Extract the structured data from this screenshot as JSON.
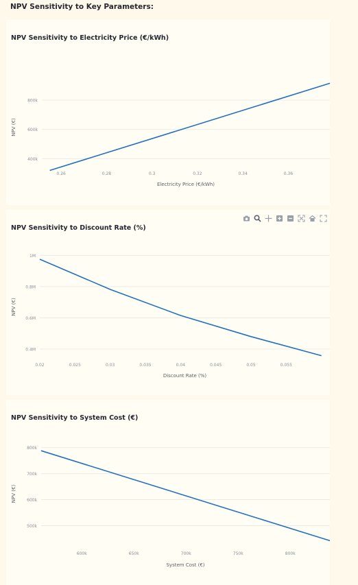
{
  "page": {
    "heading": "NPV Sensitivity to Key Parameters:"
  },
  "toolbar": {
    "icons": [
      "camera-icon",
      "zoom-icon",
      "pan-icon",
      "zoom-in-icon",
      "zoom-out-icon",
      "autoscale-icon",
      "home-icon",
      "fullscreen-icon"
    ]
  },
  "colors": {
    "line": "#1f6fc5",
    "grid": "#ebebe6",
    "tick_text": "#8a8e96",
    "axis_title": "#5b5f66",
    "background": "#fff9ec",
    "card": "#fffdf4"
  },
  "chart_data": [
    {
      "type": "line",
      "title": "NPV Sensitivity to Electricity Price (€/kWh)",
      "xlabel": "Electricity Price (€/kWh)",
      "ylabel": "NPV (€)",
      "xlim": [
        0.2515,
        0.3783
      ],
      "ylim": [
        285000,
        945000
      ],
      "xticks": [
        0.26,
        0.28,
        0.3,
        0.32,
        0.34,
        0.36
      ],
      "xtick_labels": [
        "0.26",
        "0.28",
        "0.3",
        "0.32",
        "0.34",
        "0.36"
      ],
      "yticks": [
        400000,
        600000,
        800000
      ],
      "ytick_labels": [
        "400k",
        "600k",
        "800k"
      ],
      "grid": true,
      "series": [
        {
          "x": [
            0.255,
            0.3783
          ],
          "y": [
            320000,
            915000
          ]
        }
      ]
    },
    {
      "type": "line",
      "title": "NPV Sensitivity to Discount Rate (%)",
      "xlabel": "Discount Rate (%)",
      "ylabel": "NPV (€)",
      "xlim": [
        0.02,
        0.0612
      ],
      "ylim": [
        330000,
        1010000
      ],
      "xticks": [
        0.02,
        0.025,
        0.03,
        0.035,
        0.04,
        0.045,
        0.05,
        0.055
      ],
      "xtick_labels": [
        "0.02",
        "0.025",
        "0.03",
        "0.035",
        "0.04",
        "0.045",
        "0.05",
        "0.055"
      ],
      "yticks": [
        400000,
        600000,
        800000,
        1000000
      ],
      "ytick_labels": [
        "0.4M",
        "0.6M",
        "0.8M",
        "1M"
      ],
      "grid": true,
      "series": [
        {
          "x": [
            0.02,
            0.03,
            0.04,
            0.05,
            0.06
          ],
          "y": [
            975000,
            782000,
            615000,
            480000,
            358000
          ]
        }
      ]
    },
    {
      "type": "line",
      "title": "NPV Sensitivity to System Cost (€)",
      "xlabel": "System Cost (€)",
      "ylabel": "NPV (€)",
      "xlim": [
        561000,
        838000
      ],
      "ylim": [
        430000,
        815000
      ],
      "xticks": [
        600000,
        650000,
        700000,
        750000,
        800000
      ],
      "xtick_labels": [
        "600k",
        "650k",
        "700k",
        "750k",
        "800k"
      ],
      "yticks": [
        500000,
        600000,
        700000,
        800000
      ],
      "ytick_labels": [
        "500k",
        "600k",
        "700k",
        "800k"
      ],
      "grid": true,
      "series": [
        {
          "x": [
            561000,
            838000
          ],
          "y": [
            788000,
            442000
          ]
        }
      ]
    }
  ]
}
